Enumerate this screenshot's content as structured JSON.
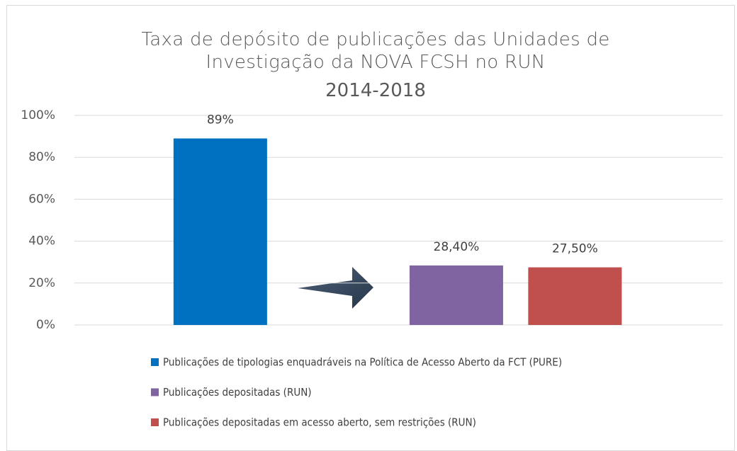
{
  "chart_data": {
    "type": "bar",
    "title": "Taxa de depósito de publicações das Unidades de Investigação da NOVA FCSH no RUN",
    "subtitle": "2014-2018",
    "ylim": [
      0,
      100
    ],
    "yticks": [
      {
        "value": 0,
        "label": "0%"
      },
      {
        "value": 20,
        "label": "20%"
      },
      {
        "value": 40,
        "label": "40%"
      },
      {
        "value": 60,
        "label": "60%"
      },
      {
        "value": 80,
        "label": "80%"
      },
      {
        "value": 100,
        "label": "100%"
      }
    ],
    "grid": true,
    "legend": "bottom",
    "series": [
      {
        "name": "Publicações de tipologias enquadráveis na Política de Acesso Aberto da FCT (PURE)",
        "color": "#0070c0",
        "values": [
          89
        ],
        "value_labels": [
          "89%"
        ]
      },
      {
        "name": "Publicações depositadas (RUN)",
        "color": "#8064a2",
        "values": [
          28.4
        ],
        "value_labels": [
          "28,40%"
        ]
      },
      {
        "name": "Publicações depositadas em acesso aberto, sem restrições (RUN)",
        "color": "#c0504d",
        "values": [
          27.5
        ],
        "value_labels": [
          "27,50%"
        ]
      }
    ]
  }
}
